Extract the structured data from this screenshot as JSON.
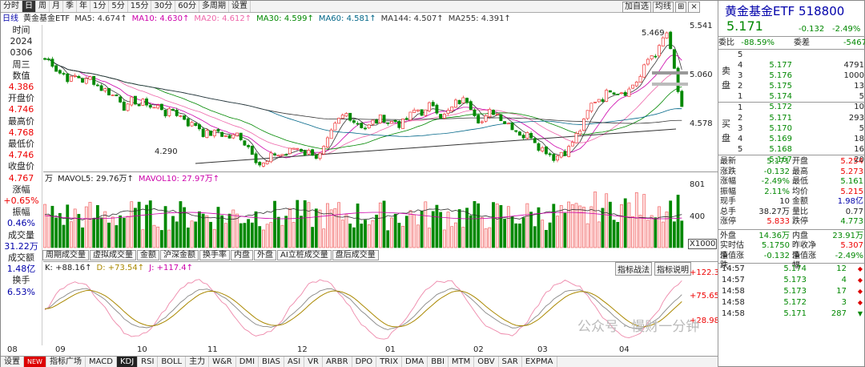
{
  "toolbar": {
    "tabs": [
      "分时",
      "日",
      "周",
      "月",
      "季",
      "年",
      "1分",
      "5分",
      "15分",
      "30分",
      "60分",
      "多周期",
      "设置"
    ],
    "active": 1,
    "right": [
      "加自选",
      "均线",
      "⊞",
      "×"
    ]
  },
  "infobar": [
    {
      "t": "日线",
      "c": "#00a"
    },
    {
      "t": "黄金基金ETF",
      "c": "#222"
    },
    {
      "t": "MA5: 4.674↑",
      "c": "#333"
    },
    {
      "t": "MA10: 4.630↑",
      "c": "#c0a"
    },
    {
      "t": "MA20: 4.612↑",
      "c": "#e6a"
    },
    {
      "t": "MA30: 4.599↑",
      "c": "#080"
    },
    {
      "t": "MA60: 4.581↑",
      "c": "#068"
    },
    {
      "t": "MA144: 4.507↑",
      "c": "#333"
    },
    {
      "t": "MA255: 4.391↑",
      "c": "#333"
    }
  ],
  "leftpanel": [
    {
      "t": "时间"
    },
    {
      "t": "2024"
    },
    {
      "t": "0306"
    },
    {
      "t": "周三"
    },
    {
      "t": "数值"
    },
    {
      "t": "4.386",
      "c": "red"
    },
    {
      "t": "开盘价"
    },
    {
      "t": "4.746",
      "c": "red"
    },
    {
      "t": "最高价"
    },
    {
      "t": "4.768",
      "c": "red"
    },
    {
      "t": "最低价"
    },
    {
      "t": "4.746",
      "c": "red"
    },
    {
      "t": "收盘价"
    },
    {
      "t": "4.767",
      "c": "red"
    },
    {
      "t": "涨幅"
    },
    {
      "t": "+0.65%",
      "c": "red"
    },
    {
      "t": "振幅"
    },
    {
      "t": "0.46%",
      "c": "blue"
    },
    {
      "t": "成交量"
    },
    {
      "t": "31.22万",
      "c": "blue"
    },
    {
      "t": "成交额"
    },
    {
      "t": "1.48亿",
      "c": "blue"
    },
    {
      "t": "换手"
    },
    {
      "t": "6.53%",
      "c": "blue"
    }
  ],
  "price_axis": [
    "5.541",
    "5.060",
    "4.578"
  ],
  "labels": {
    "high": "5.469",
    "low": "4.290"
  },
  "vol": {
    "info": [
      "万",
      "MAVOL5: 29.76万↑",
      "MAVOL10: 27.97万↑"
    ],
    "axis": [
      "801",
      "400",
      "X1000"
    ]
  },
  "subtabs": [
    "周期成交量",
    "虚拟成交量",
    "金额",
    "沪深金额",
    "换手率",
    "内盘",
    "外盘",
    "AI立桩成交量",
    "盘后成交量"
  ],
  "kdj": {
    "info": [
      "K: +88.16↑",
      "D: +73.54↑",
      "J: +117.4↑"
    ],
    "buttons": [
      "指标战法",
      "指标说明"
    ],
    "axis": [
      "+122.3",
      "+75.65",
      "+28.98"
    ]
  },
  "dates": [
    "08",
    "09",
    "10",
    "11",
    "12",
    "01",
    "02",
    "03",
    "04"
  ],
  "bottomtabs": [
    "设置",
    "NEW",
    "指标广场",
    "MACD",
    "KDJ",
    "RSI",
    "BOLL",
    "主力",
    "W&R",
    "DMI",
    "BIAS",
    "ASI",
    "VR",
    "ARBR",
    "DPO",
    "TRIX",
    "DMA",
    "BBI",
    "MTM",
    "OBV",
    "SAR",
    "EXPMA"
  ],
  "bottom_active": 4,
  "quote": {
    "name": "黄金基金ETF 518800",
    "price": "5.171",
    "change": "-0.132",
    "pct": "-2.49%"
  },
  "weibi": {
    "label": "委比",
    "value": "-88.59%",
    "label2": "委差",
    "value2": "-5467"
  },
  "sell": [
    {
      "n": "5",
      "p": "5.177",
      "v": "4791"
    },
    {
      "n": "4",
      "p": "5.176",
      "v": "1000"
    },
    {
      "n": "3",
      "p": "5.175",
      "v": "13"
    },
    {
      "n": "2",
      "p": "5.174",
      "v": "5"
    },
    {
      "n": "1",
      "p": "5.172",
      "v": "10"
    }
  ],
  "buy": [
    {
      "n": "1",
      "p": "5.171",
      "v": "293"
    },
    {
      "n": "2",
      "p": "5.170",
      "v": "5"
    },
    {
      "n": "3",
      "p": "5.169",
      "v": "18"
    },
    {
      "n": "4",
      "p": "5.168",
      "v": "16"
    },
    {
      "n": "5",
      "p": "5.167",
      "v": "20"
    }
  ],
  "sellside": "卖盘",
  "buyside": "买盘",
  "stats": [
    [
      "最新",
      "5.171",
      "开盘",
      "5.254"
    ],
    [
      "涨跌",
      "-0.132",
      "最高",
      "5.273"
    ],
    [
      "涨幅",
      "-2.49%",
      "最低",
      "5.161"
    ],
    [
      "振幅",
      "2.11%",
      "均价",
      "5.215"
    ],
    [
      "现手",
      "10",
      "金额",
      "1.98亿"
    ],
    [
      "总手",
      "38.27万",
      "量比",
      "0.77"
    ],
    [
      "涨停",
      "5.833",
      "跌停",
      "4.773"
    ]
  ],
  "inout": [
    [
      "外盘",
      "14.36万",
      "内盘",
      "23.91万"
    ],
    [
      "实时估值",
      "5.1750",
      "昨收净值",
      "5.307"
    ],
    [
      "净值涨跌",
      "-0.132",
      "净值涨幅",
      "-2.49%"
    ]
  ],
  "ticks": [
    [
      "14:57",
      "5.174",
      "12"
    ],
    [
      "14:57",
      "5.173",
      "4"
    ],
    [
      "14:58",
      "5.173",
      "17"
    ],
    [
      "14:58",
      "5.172",
      "3"
    ],
    [
      "14:58",
      "5.171",
      "287"
    ]
  ],
  "watermark": "公众号 · 慢财一分钟",
  "chart_data": {
    "type": "candlestick",
    "ylim": [
      4.29,
      5.469
    ],
    "y_ticks": [
      4.578,
      5.06,
      5.541
    ],
    "x": [
      "08",
      "09",
      "10",
      "11",
      "12",
      "01",
      "02",
      "03",
      "04"
    ]
  }
}
